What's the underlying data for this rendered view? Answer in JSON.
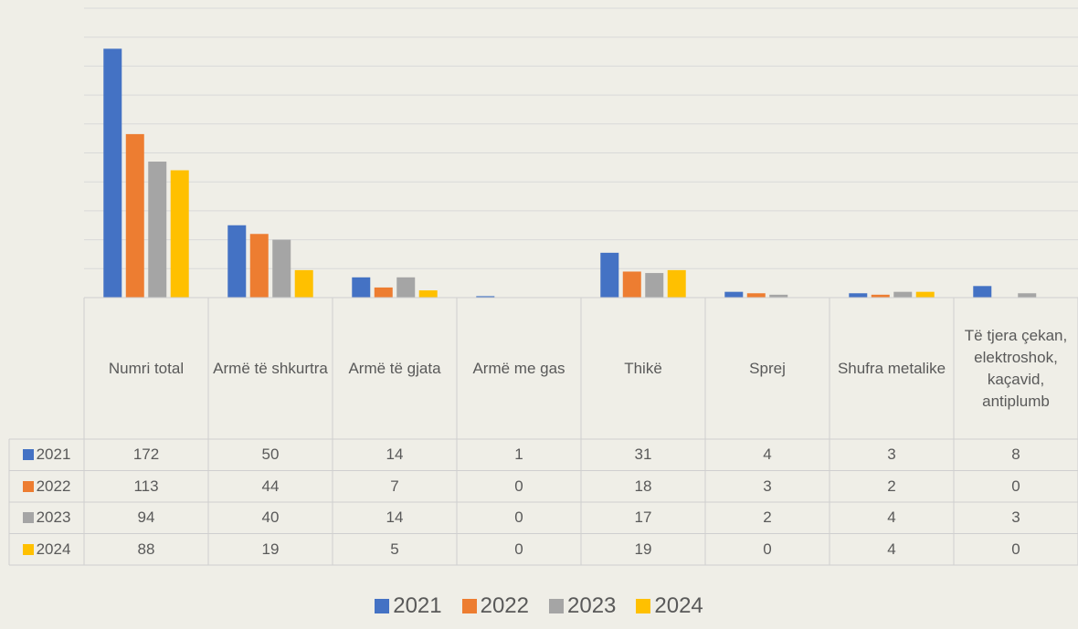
{
  "chart_data": {
    "type": "bar",
    "categories": [
      "Numri total",
      "Armë të shkurtra",
      "Armë të gjata",
      "Armë me gas",
      "Thikë",
      "Sprej",
      "Shufra metalike",
      "Të tjera çekan, elektroshok, kaçavid, antiplumb"
    ],
    "series": [
      {
        "name": "2021",
        "color": "#4472c4",
        "values": [
          172,
          50,
          14,
          1,
          31,
          4,
          3,
          8
        ]
      },
      {
        "name": "2022",
        "color": "#ed7d31",
        "values": [
          113,
          44,
          7,
          0,
          18,
          3,
          2,
          0
        ]
      },
      {
        "name": "2023",
        "color": "#a5a5a5",
        "values": [
          94,
          40,
          14,
          0,
          17,
          2,
          4,
          3
        ]
      },
      {
        "name": "2024",
        "color": "#ffc000",
        "values": [
          88,
          19,
          5,
          0,
          19,
          0,
          4,
          0
        ]
      }
    ],
    "ylim": [
      0,
      200
    ],
    "yticks": [
      0,
      20,
      40,
      60,
      80,
      100,
      120,
      140,
      160,
      180,
      200
    ],
    "grid": true
  }
}
